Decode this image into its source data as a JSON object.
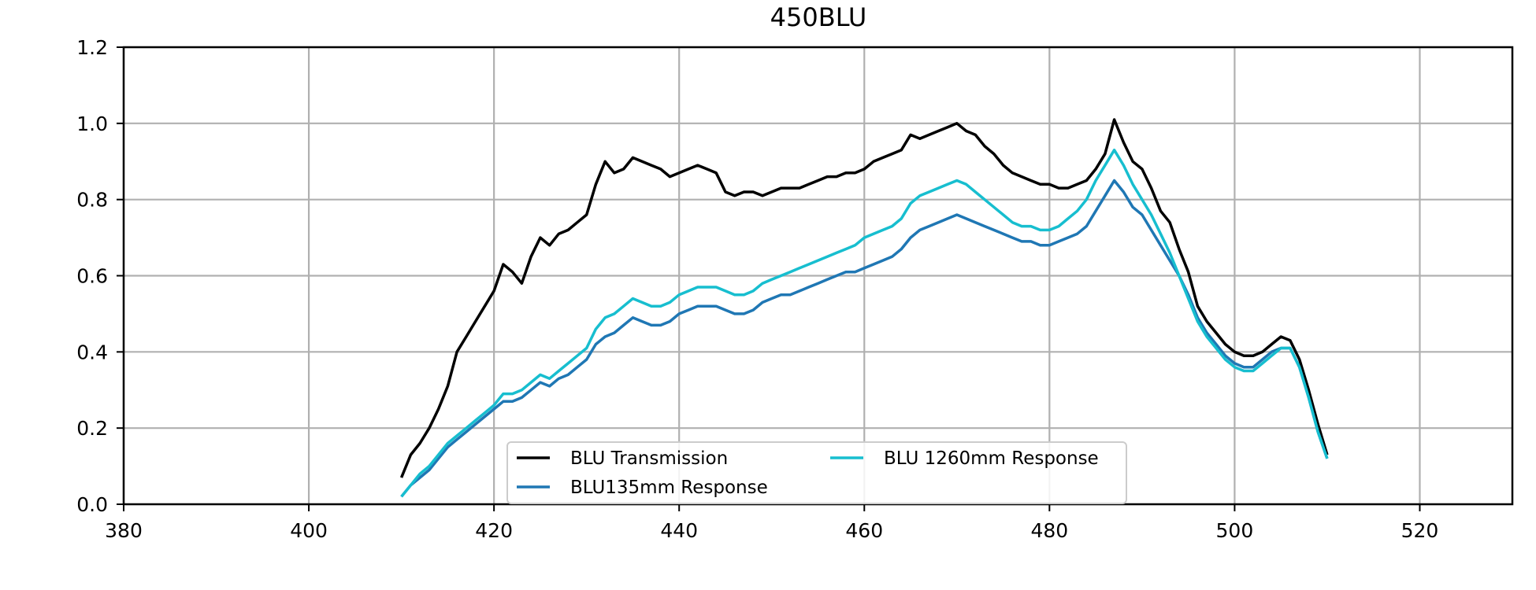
{
  "chart_data": {
    "type": "line",
    "title": "450BLU",
    "xlabel": "",
    "ylabel": "",
    "xlim": [
      380,
      530
    ],
    "ylim": [
      0.0,
      1.2
    ],
    "xticks": [
      "380",
      "400",
      "420",
      "440",
      "460",
      "480",
      "500",
      "520"
    ],
    "yticks": [
      "0.0",
      "0.2",
      "0.4",
      "0.6",
      "0.8",
      "1.0",
      "1.2"
    ],
    "grid": true,
    "legend": {
      "placement": "lower-center",
      "columns": 2
    },
    "x": [
      410,
      411,
      412,
      413,
      414,
      415,
      416,
      417,
      418,
      419,
      420,
      421,
      422,
      423,
      424,
      425,
      426,
      427,
      428,
      429,
      430,
      431,
      432,
      433,
      434,
      435,
      436,
      437,
      438,
      439,
      440,
      441,
      442,
      443,
      444,
      445,
      446,
      447,
      448,
      449,
      450,
      451,
      452,
      453,
      454,
      455,
      456,
      457,
      458,
      459,
      460,
      461,
      462,
      463,
      464,
      465,
      466,
      467,
      468,
      469,
      470,
      471,
      472,
      473,
      474,
      475,
      476,
      477,
      478,
      479,
      480,
      481,
      482,
      483,
      484,
      485,
      486,
      487,
      488,
      489,
      490,
      491,
      492,
      493,
      494,
      495,
      496,
      497,
      498,
      499,
      500,
      501,
      502,
      503,
      504,
      505,
      506,
      507,
      508,
      509,
      510
    ],
    "series": [
      {
        "name": "BLU Transmission",
        "color": "#000000",
        "values": [
          0.07,
          0.13,
          0.16,
          0.2,
          0.25,
          0.31,
          0.4,
          0.44,
          0.48,
          0.52,
          0.56,
          0.63,
          0.61,
          0.58,
          0.65,
          0.7,
          0.68,
          0.71,
          0.72,
          0.74,
          0.76,
          0.84,
          0.9,
          0.87,
          0.88,
          0.91,
          0.9,
          0.89,
          0.88,
          0.86,
          0.87,
          0.88,
          0.89,
          0.88,
          0.87,
          0.82,
          0.81,
          0.82,
          0.82,
          0.81,
          0.82,
          0.83,
          0.83,
          0.83,
          0.84,
          0.85,
          0.86,
          0.86,
          0.87,
          0.87,
          0.88,
          0.9,
          0.91,
          0.92,
          0.93,
          0.97,
          0.96,
          0.97,
          0.98,
          0.99,
          1.0,
          0.98,
          0.97,
          0.94,
          0.92,
          0.89,
          0.87,
          0.86,
          0.85,
          0.84,
          0.84,
          0.83,
          0.83,
          0.84,
          0.85,
          0.88,
          0.92,
          1.01,
          0.95,
          0.9,
          0.88,
          0.83,
          0.77,
          0.74,
          0.67,
          0.61,
          0.52,
          0.48,
          0.45,
          0.42,
          0.4,
          0.39,
          0.39,
          0.4,
          0.42,
          0.44,
          0.43,
          0.38,
          0.3,
          0.21,
          0.13
        ]
      },
      {
        "name": "BLU135mm Response",
        "color": "#1f77b4",
        "values": [
          0.02,
          0.05,
          0.07,
          0.09,
          0.12,
          0.15,
          0.17,
          0.19,
          0.21,
          0.23,
          0.25,
          0.27,
          0.27,
          0.28,
          0.3,
          0.32,
          0.31,
          0.33,
          0.34,
          0.36,
          0.38,
          0.42,
          0.44,
          0.45,
          0.47,
          0.49,
          0.48,
          0.47,
          0.47,
          0.48,
          0.5,
          0.51,
          0.52,
          0.52,
          0.52,
          0.51,
          0.5,
          0.5,
          0.51,
          0.53,
          0.54,
          0.55,
          0.55,
          0.56,
          0.57,
          0.58,
          0.59,
          0.6,
          0.61,
          0.61,
          0.62,
          0.63,
          0.64,
          0.65,
          0.67,
          0.7,
          0.72,
          0.73,
          0.74,
          0.75,
          0.76,
          0.75,
          0.74,
          0.73,
          0.72,
          0.71,
          0.7,
          0.69,
          0.69,
          0.68,
          0.68,
          0.69,
          0.7,
          0.71,
          0.73,
          0.77,
          0.81,
          0.85,
          0.82,
          0.78,
          0.76,
          0.72,
          0.68,
          0.64,
          0.6,
          0.55,
          0.49,
          0.45,
          0.42,
          0.39,
          0.37,
          0.36,
          0.36,
          0.38,
          0.4,
          0.41,
          0.41,
          0.36,
          0.28,
          0.19,
          0.12
        ]
      },
      {
        "name": "BLU 1260mm Response",
        "color": "#17becf",
        "values": [
          0.02,
          0.05,
          0.08,
          0.1,
          0.13,
          0.16,
          0.18,
          0.2,
          0.22,
          0.24,
          0.26,
          0.29,
          0.29,
          0.3,
          0.32,
          0.34,
          0.33,
          0.35,
          0.37,
          0.39,
          0.41,
          0.46,
          0.49,
          0.5,
          0.52,
          0.54,
          0.53,
          0.52,
          0.52,
          0.53,
          0.55,
          0.56,
          0.57,
          0.57,
          0.57,
          0.56,
          0.55,
          0.55,
          0.56,
          0.58,
          0.59,
          0.6,
          0.61,
          0.62,
          0.63,
          0.64,
          0.65,
          0.66,
          0.67,
          0.68,
          0.7,
          0.71,
          0.72,
          0.73,
          0.75,
          0.79,
          0.81,
          0.82,
          0.83,
          0.84,
          0.85,
          0.84,
          0.82,
          0.8,
          0.78,
          0.76,
          0.74,
          0.73,
          0.73,
          0.72,
          0.72,
          0.73,
          0.75,
          0.77,
          0.8,
          0.85,
          0.89,
          0.93,
          0.89,
          0.84,
          0.8,
          0.76,
          0.71,
          0.66,
          0.6,
          0.54,
          0.48,
          0.44,
          0.41,
          0.38,
          0.36,
          0.35,
          0.35,
          0.37,
          0.39,
          0.41,
          0.41,
          0.36,
          0.28,
          0.19,
          0.12
        ]
      }
    ]
  }
}
